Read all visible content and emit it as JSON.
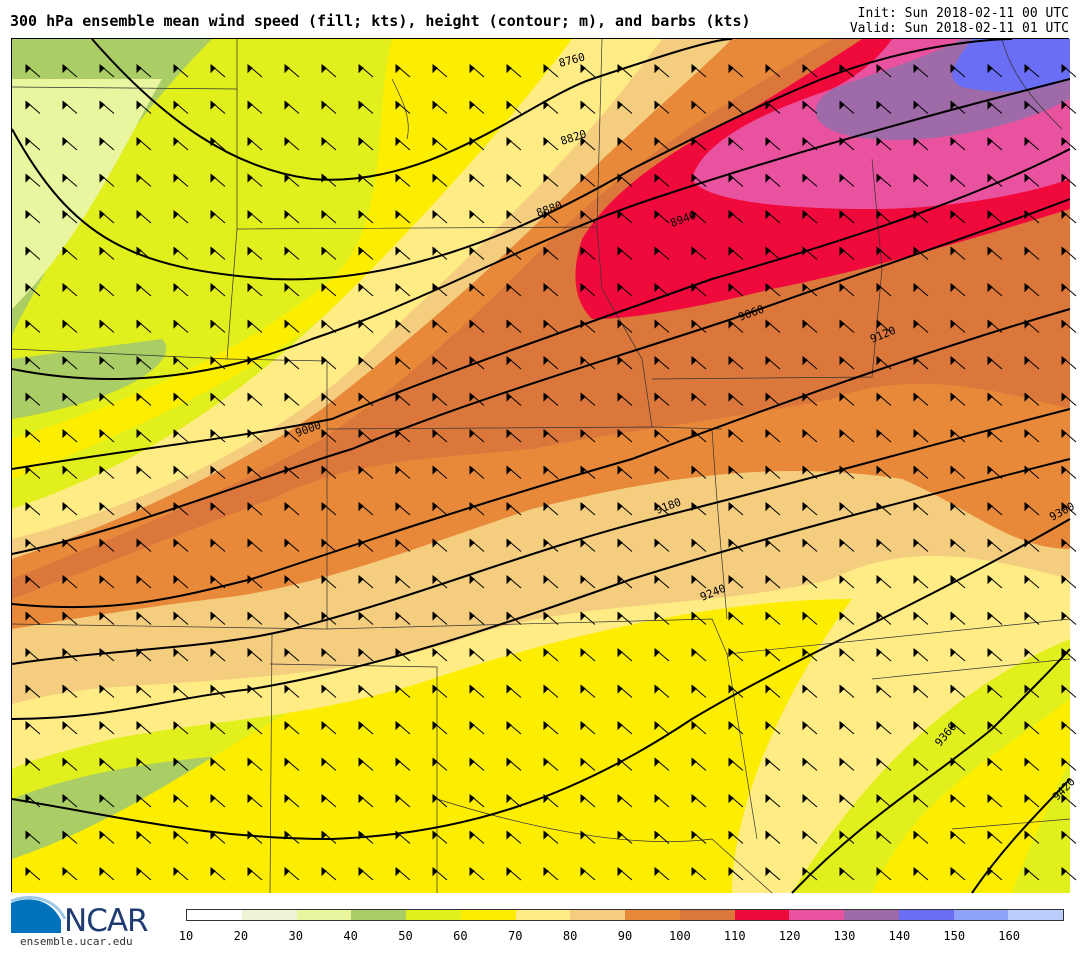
{
  "header": {
    "title": "300 hPa ensemble mean wind speed (fill; kts), height (contour; m), and barbs (kts)",
    "init": "Init: Sun 2018-02-11 00 UTC",
    "valid": "Valid: Sun 2018-02-11 01 UTC"
  },
  "contours": {
    "units": "m",
    "labels": [
      "8760",
      "8820",
      "8880",
      "8940",
      "9000",
      "9060",
      "9120",
      "9180",
      "9240",
      "9300",
      "9360",
      "9420"
    ]
  },
  "colorbar": {
    "units": "kts",
    "ticks": [
      "10",
      "20",
      "30",
      "40",
      "50",
      "60",
      "70",
      "80",
      "90",
      "100",
      "110",
      "120",
      "130",
      "140",
      "150",
      "160"
    ],
    "colors": [
      "#ffffff",
      "#f0f4d6",
      "#e9f59f",
      "#aacd66",
      "#e1ef1d",
      "#fdee00",
      "#ffec85",
      "#f4cd7e",
      "#e8893a",
      "#dc773c",
      "#f00a3c",
      "#e8529e",
      "#9e6aa8",
      "#6a6ef5",
      "#8ea3fb",
      "#b9ccfb"
    ]
  },
  "logo": {
    "name": "NCAR",
    "url": "ensemble.ucar.edu"
  }
}
